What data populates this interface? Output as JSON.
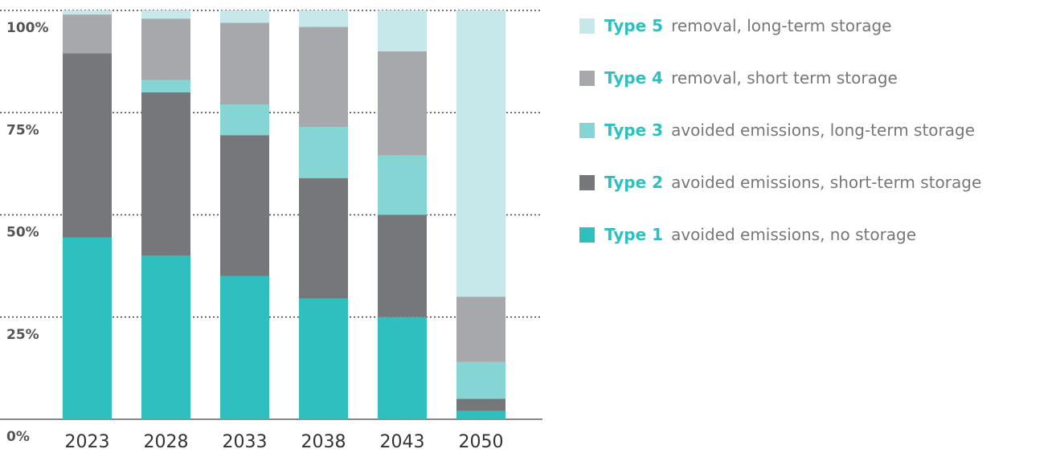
{
  "chart_data": {
    "type": "stacked_bar",
    "categories": [
      "2023",
      "2028",
      "2033",
      "2038",
      "2043",
      "2050"
    ],
    "series": [
      {
        "name": "Type 1",
        "description": "avoided emissions, no storage",
        "color": "#2fbfbf",
        "values": [
          44.5,
          40,
          35,
          29.5,
          25,
          2
        ]
      },
      {
        "name": "Type 2",
        "description": "avoided emissions, short-term storage",
        "color": "#76777b",
        "values": [
          45,
          40,
          34.5,
          29.5,
          25,
          3
        ]
      },
      {
        "name": "Type 3",
        "description": "avoided emissions, long-term storage",
        "color": "#86d5d5",
        "values": [
          0,
          3,
          7.5,
          12.5,
          14.5,
          9
        ]
      },
      {
        "name": "Type 4",
        "description": "removal, short term storage",
        "color": "#a7a8ab",
        "values": [
          9.5,
          15,
          20,
          24.5,
          25.5,
          16
        ]
      },
      {
        "name": "Type 5",
        "description": "removal, long-term storage",
        "color": "#c6e8ea",
        "values": [
          1,
          2,
          3,
          4,
          10,
          70
        ]
      }
    ],
    "ylim": [
      0,
      100
    ],
    "yticks": [
      {
        "value": 0,
        "label": "0%"
      },
      {
        "value": 25,
        "label": "25%"
      },
      {
        "value": 50,
        "label": "50%"
      },
      {
        "value": 75,
        "label": "75%"
      },
      {
        "value": 100,
        "label": "100%"
      }
    ],
    "grid": true,
    "legend": "right"
  }
}
